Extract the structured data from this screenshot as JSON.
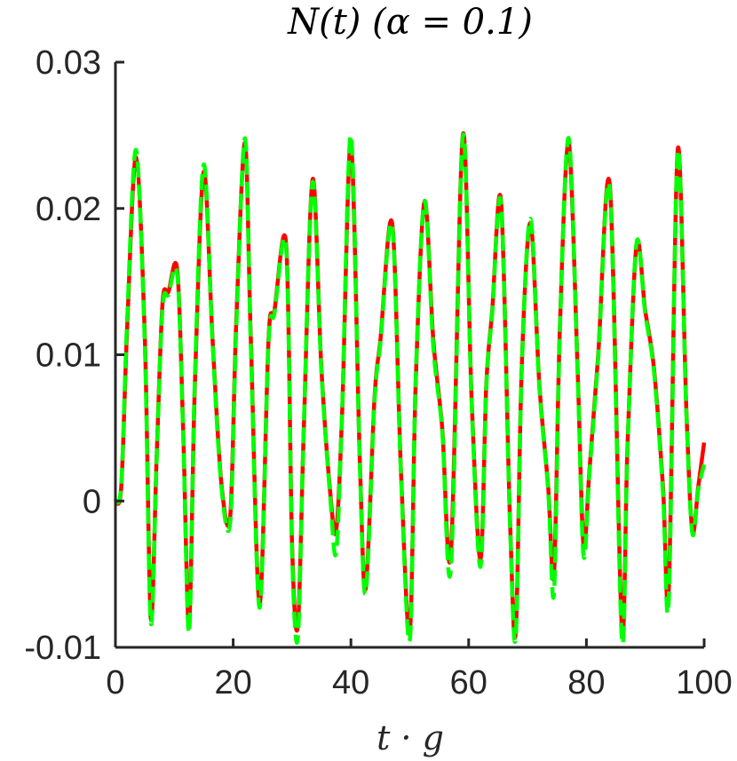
{
  "chart_data": {
    "type": "line",
    "title": "N(t) (α = 0.1)",
    "xlabel": "t · g",
    "ylabel": "",
    "xlim": [
      0,
      100
    ],
    "ylim": [
      -0.01,
      0.03
    ],
    "x_ticks": [
      0,
      20,
      40,
      60,
      80,
      100
    ],
    "x_tick_labels": [
      "0",
      "20",
      "40",
      "60",
      "80",
      "100"
    ],
    "y_ticks": [
      -0.01,
      0,
      0.01,
      0.02,
      0.03
    ],
    "y_tick_labels": [
      "-0.01",
      "0",
      "0.01",
      "0.02",
      "0.03"
    ],
    "grid": false,
    "legend": "none",
    "series": [
      {
        "color": "#ff0000",
        "style": "solid",
        "x": [
          0,
          1,
          2,
          3.5,
          5,
          6,
          7,
          8,
          9,
          10.5,
          11.5,
          12.5,
          13.5,
          15,
          16.5,
          18,
          19.5,
          20.5,
          22,
          23,
          24.5,
          26,
          27,
          29,
          30,
          31,
          32,
          33.5,
          35,
          36.5,
          37.5,
          38.5,
          40,
          41.5,
          42.5,
          44,
          45,
          47,
          48.5,
          50,
          51,
          52.5,
          54,
          55.5,
          57,
          59,
          60.5,
          62,
          63,
          64,
          65.5,
          67,
          68,
          69,
          70.5,
          72,
          73.5,
          74.5,
          75.5,
          77,
          78.5,
          79.5,
          80.5,
          82,
          84,
          86,
          87,
          88.5,
          90,
          91.5,
          93,
          94,
          95.5,
          97,
          98,
          99,
          100
        ],
        "y": [
          0,
          0.001,
          0.012,
          0.0235,
          0.011,
          -0.008,
          0.003,
          0.0135,
          0.0143,
          0.0158,
          0.005,
          -0.0085,
          0.008,
          0.0225,
          0.011,
          0.0012,
          -0.001,
          0.012,
          0.0245,
          0.011,
          -0.007,
          0.011,
          0.013,
          0.0175,
          -0.003,
          -0.0085,
          0.005,
          0.022,
          0.009,
          0.0005,
          -0.002,
          0.006,
          0.0245,
          0.003,
          -0.006,
          0.007,
          0.011,
          0.019,
          0.002,
          -0.009,
          0.008,
          0.0205,
          0.011,
          0.005,
          -0.0035,
          0.025,
          0.007,
          -0.004,
          0.008,
          0.013,
          0.0205,
          -0.001,
          -0.009,
          0.009,
          0.019,
          0.008,
          0.001,
          -0.005,
          0.012,
          0.0245,
          0.009,
          -0.003,
          0.002,
          0.01,
          0.0215,
          -0.0085,
          0.004,
          0.0175,
          0.013,
          0.009,
          0.001,
          -0.006,
          0.024,
          0.006,
          -0.002,
          0.001,
          0.004
        ]
      },
      {
        "color": "#00ff00",
        "style": "dashed",
        "x": [
          0,
          1,
          2,
          3.5,
          5,
          6,
          7,
          8,
          9,
          10.5,
          11.5,
          12.5,
          13.5,
          15,
          16.5,
          18,
          19.5,
          20.5,
          22,
          23,
          24.5,
          26,
          27,
          29,
          30,
          31,
          32,
          33.5,
          35,
          36.5,
          37.5,
          38.5,
          40,
          41.5,
          42.5,
          44,
          45,
          47,
          48.5,
          50,
          51,
          52.5,
          54,
          55.5,
          57,
          59,
          60.5,
          62,
          63,
          64,
          65.5,
          67,
          68,
          69,
          70.5,
          72,
          73.5,
          74.5,
          75.5,
          77,
          78.5,
          79.5,
          80.5,
          82,
          84,
          86,
          87,
          88.5,
          90,
          91.5,
          93,
          94,
          95.5,
          97,
          98,
          99,
          100
        ],
        "y": [
          0,
          0.0012,
          0.0125,
          0.024,
          0.0105,
          -0.0083,
          0.0028,
          0.0132,
          0.0141,
          0.0155,
          0.0048,
          -0.009,
          0.0085,
          0.023,
          0.0108,
          0.001,
          -0.0014,
          0.0115,
          0.0248,
          0.0105,
          -0.0073,
          0.0108,
          0.0128,
          0.0173,
          -0.0035,
          -0.0093,
          0.0052,
          0.0218,
          0.0088,
          0.0002,
          -0.0035,
          0.0062,
          0.025,
          0.0028,
          -0.0063,
          0.0068,
          0.0108,
          0.0188,
          0.0018,
          -0.0095,
          0.0082,
          0.0205,
          0.0105,
          0.0048,
          -0.0045,
          0.0249,
          0.0068,
          -0.0045,
          0.0078,
          0.0128,
          0.0203,
          -0.0012,
          -0.0093,
          0.0088,
          0.0193,
          0.0078,
          0.0008,
          -0.0063,
          0.0118,
          0.0248,
          0.0088,
          -0.0037,
          0.0018,
          0.0098,
          0.0212,
          -0.0093,
          0.0038,
          0.0176,
          0.0128,
          0.0088,
          0.0006,
          -0.0067,
          0.0238,
          0.0058,
          -0.0022,
          0.0008,
          0.0025
        ]
      }
    ]
  }
}
